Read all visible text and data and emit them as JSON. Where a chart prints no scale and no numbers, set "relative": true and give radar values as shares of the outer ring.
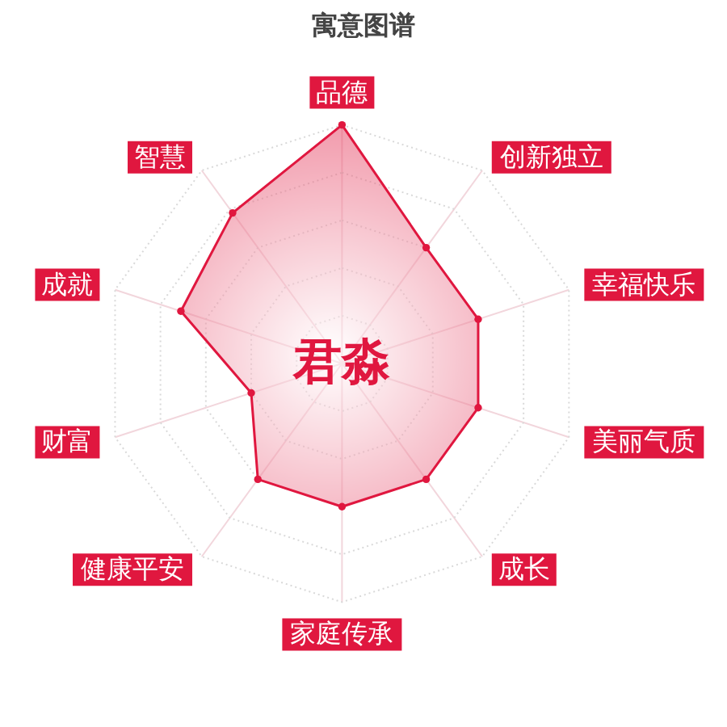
{
  "chart_data": {
    "type": "radar",
    "title": "寓意图谱",
    "categories": [
      "品德",
      "创新独立",
      "幸福快乐",
      "美丽气质",
      "成长",
      "家庭传承",
      "健康平安",
      "财富",
      "成就",
      "智慧"
    ],
    "relative": true,
    "series": [
      {
        "color": "#e0173f",
        "values": [
          1,
          0.6,
          0.6,
          0.6,
          0.6,
          0.6,
          0.6,
          0.4,
          0.71,
          0.78
        ]
      }
    ],
    "grid": true,
    "marker": "circle",
    "annotations": [
      "君淼"
    ]
  }
}
